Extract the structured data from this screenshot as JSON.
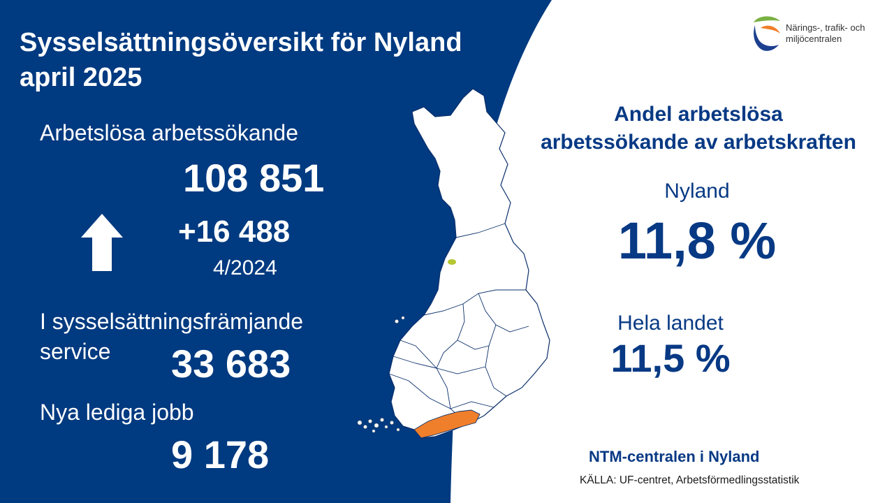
{
  "title": {
    "line1": "Sysselsättningsöversikt för Nyland",
    "line2": "april 2025"
  },
  "unemployed": {
    "label": "Arbetslösa arbetssökande",
    "value": "108 851",
    "change": "+16 488",
    "reference": "4/2024",
    "trend_icon": "arrow-up-icon"
  },
  "services": {
    "label_line1": "I sysselsättningsfrämjande",
    "label_line2": "service",
    "value": "33 683"
  },
  "vacancies": {
    "label": "Nya lediga jobb",
    "value": "9 178"
  },
  "share": {
    "heading_line1": "Andel arbetslösa",
    "heading_line2": "arbetssökande av arbetskraften",
    "region_label": "Nyland",
    "region_value": "11,8 %",
    "country_label": "Hela landet",
    "country_value": "11,5 %"
  },
  "org": "NTM-centralen i Nyland",
  "source": "KÄLLA: UF-centret, Arbetsförmedlingsstatistik",
  "logo": {
    "line1": "Närings-, trafik- och",
    "line2": "miljöcentralen"
  },
  "colors": {
    "navy": "#003a80",
    "text_blue": "#073984",
    "highlight_region": "#f07f2b",
    "logo_green": "#7ab142",
    "logo_orange": "#f07f2b"
  }
}
